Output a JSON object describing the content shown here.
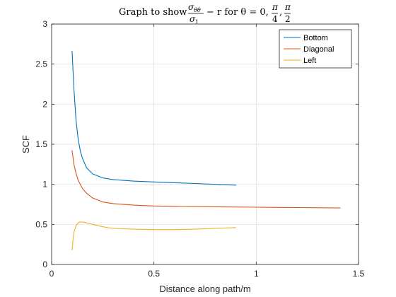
{
  "chart_data": {
    "type": "line",
    "title": {
      "prefix": "Graph to show",
      "numerator": "σ",
      "numerator_sub": "θθ",
      "denominator": "σ",
      "denominator_sub": "1",
      "middle": "− r for θ = 0,",
      "frac2_num": "π",
      "frac2_den": "4",
      "separator": ",",
      "frac3_num": "π",
      "frac3_den": "2"
    },
    "xlabel": "Distance along path/m",
    "ylabel": "SCF",
    "xlim": [
      0,
      1.5
    ],
    "ylim": [
      0,
      3
    ],
    "xticks": [
      0,
      0.5,
      1,
      1.5
    ],
    "xtick_labels": [
      "0",
      "0.5",
      "1",
      "1.5"
    ],
    "yticks": [
      0,
      0.5,
      1,
      1.5,
      2,
      2.5,
      3
    ],
    "ytick_labels": [
      "0",
      "0.5",
      "1",
      "1.5",
      "2",
      "2.5",
      "3"
    ],
    "grid": true,
    "legend_position": "top-right",
    "series": [
      {
        "name": "Bottom",
        "color": "#0072BD",
        "x": [
          0.1,
          0.11,
          0.12,
          0.13,
          0.14,
          0.15,
          0.17,
          0.2,
          0.25,
          0.3,
          0.4,
          0.5,
          0.6,
          0.7,
          0.8,
          0.9
        ],
        "y": [
          2.66,
          2.15,
          1.78,
          1.56,
          1.42,
          1.33,
          1.21,
          1.13,
          1.08,
          1.06,
          1.04,
          1.03,
          1.02,
          1.01,
          1.0,
          0.99
        ]
      },
      {
        "name": "Diagonal",
        "color": "#D95319",
        "x": [
          0.1,
          0.11,
          0.12,
          0.13,
          0.15,
          0.17,
          0.2,
          0.25,
          0.3,
          0.4,
          0.5,
          0.6,
          0.8,
          1.0,
          1.2,
          1.41
        ],
        "y": [
          1.42,
          1.24,
          1.13,
          1.05,
          0.95,
          0.89,
          0.83,
          0.78,
          0.76,
          0.74,
          0.73,
          0.725,
          0.72,
          0.715,
          0.71,
          0.705
        ]
      },
      {
        "name": "Left",
        "color": "#EDB120",
        "x": [
          0.1,
          0.105,
          0.11,
          0.12,
          0.13,
          0.14,
          0.15,
          0.17,
          0.2,
          0.25,
          0.3,
          0.4,
          0.5,
          0.6,
          0.7,
          0.8,
          0.9
        ],
        "y": [
          0.18,
          0.32,
          0.41,
          0.49,
          0.52,
          0.53,
          0.53,
          0.52,
          0.5,
          0.47,
          0.45,
          0.44,
          0.435,
          0.435,
          0.44,
          0.45,
          0.46
        ]
      }
    ]
  }
}
